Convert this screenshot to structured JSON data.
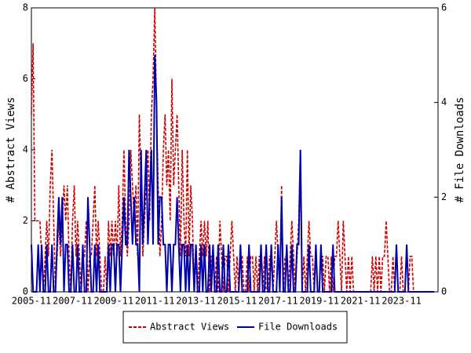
{
  "chart_data": {
    "type": "line",
    "y_label": "# Abstract Views",
    "y2_label": "# File Downloads",
    "categories": [
      "2005-11",
      null,
      null,
      null,
      null,
      null,
      null,
      null,
      null,
      null,
      null,
      null,
      null,
      null,
      null,
      null,
      null,
      null,
      null,
      null,
      null,
      null,
      null,
      null,
      "2007-11",
      null,
      null,
      null,
      null,
      null,
      null,
      null,
      null,
      null,
      null,
      null,
      null,
      null,
      null,
      null,
      null,
      null,
      null,
      null,
      null,
      null,
      null,
      null,
      "2009-11",
      null,
      null,
      null,
      null,
      null,
      null,
      null,
      null,
      null,
      null,
      null,
      null,
      null,
      null,
      null,
      null,
      null,
      null,
      null,
      null,
      null,
      null,
      null,
      "2011-11",
      null,
      null,
      null,
      null,
      null,
      null,
      null,
      null,
      null,
      null,
      null,
      null,
      null,
      null,
      null,
      null,
      null,
      null,
      null,
      null,
      null,
      null,
      null,
      "2013-11",
      null,
      null,
      null,
      null,
      null,
      null,
      null,
      null,
      null,
      null,
      null,
      null,
      null,
      null,
      null,
      null,
      null,
      null,
      null,
      null,
      null,
      null,
      null,
      "2015-11",
      null,
      null,
      null,
      null,
      null,
      null,
      null,
      null,
      null,
      null,
      null,
      null,
      null,
      null,
      null,
      null,
      null,
      null,
      null,
      null,
      null,
      null,
      null,
      "2017-11",
      null,
      null,
      null,
      null,
      null,
      null,
      null,
      null,
      null,
      null,
      null,
      null,
      null,
      null,
      null,
      null,
      null,
      null,
      null,
      null,
      null,
      null,
      null,
      "2019-11",
      null,
      null,
      null,
      null,
      null,
      null,
      null,
      null,
      null,
      null,
      null,
      null,
      null,
      null,
      null,
      null,
      null,
      null,
      null,
      null,
      null,
      null,
      null,
      "2021-11",
      null,
      null,
      null,
      null,
      null,
      null,
      null,
      null,
      null,
      null,
      null,
      null,
      null,
      null,
      null,
      null,
      null,
      null,
      null,
      null,
      null,
      null,
      null,
      "2023-11",
      null,
      null,
      null,
      null,
      null,
      null,
      null,
      null,
      null,
      null,
      null,
      null,
      null,
      null,
      null,
      null,
      null,
      null,
      null
    ],
    "series": [
      {
        "name": "Abstract Views",
        "color": "#cc0000",
        "dash": true,
        "values": [
          5,
          7,
          2,
          2,
          2,
          2,
          1,
          0,
          1,
          2,
          1,
          3,
          4,
          2,
          0,
          1,
          2,
          1,
          2,
          3,
          2,
          3,
          1,
          0,
          2,
          3,
          1,
          2,
          1,
          0,
          1,
          1,
          2,
          0,
          1,
          1,
          2,
          3,
          1,
          2,
          1,
          0,
          0,
          1,
          0,
          2,
          1,
          2,
          1,
          2,
          1,
          3,
          1,
          2,
          4,
          2,
          1,
          2,
          4,
          3,
          2,
          3,
          1,
          5,
          3,
          1,
          2,
          3,
          4,
          2,
          5,
          6,
          8,
          5,
          3,
          1,
          2,
          4,
          5,
          3,
          4,
          2,
          6,
          3,
          4,
          5,
          3,
          1,
          4,
          2,
          1,
          4,
          1,
          3,
          2,
          0,
          1,
          0,
          1,
          2,
          1,
          2,
          1,
          2,
          0,
          1,
          1,
          0,
          1,
          0,
          2,
          1,
          0,
          1,
          1,
          0,
          1,
          2,
          1,
          0,
          1,
          0,
          1,
          1,
          0,
          0,
          1,
          0,
          1,
          1,
          0,
          1,
          0,
          1,
          1,
          0,
          1,
          0,
          0,
          1,
          1,
          0,
          1,
          2,
          1,
          0,
          3,
          0,
          1,
          1,
          0,
          1,
          2,
          1,
          0,
          1,
          2,
          4,
          0,
          1,
          0,
          1,
          2,
          1,
          1,
          0,
          1,
          0,
          0,
          1,
          1,
          0,
          1,
          1,
          0,
          1,
          0,
          1,
          1,
          2,
          1,
          0,
          2,
          1,
          0,
          1,
          0,
          1,
          0,
          0,
          0,
          0,
          0,
          0,
          0,
          0,
          0,
          0,
          0,
          1,
          0,
          1,
          0,
          1,
          0,
          1,
          1,
          2,
          1,
          0,
          0,
          1,
          0,
          0,
          0,
          0,
          1,
          0,
          0,
          0,
          0,
          1,
          1,
          0,
          0,
          0,
          0,
          0,
          0,
          0,
          0,
          0,
          0,
          0,
          0,
          0
        ]
      },
      {
        "name": "File Downloads",
        "color": "#0000aa",
        "dash": false,
        "axis": "y2",
        "values": [
          1,
          0,
          0,
          0,
          1,
          0,
          1,
          0,
          0,
          1,
          0,
          0,
          1,
          0,
          0,
          1,
          2,
          1,
          2,
          0,
          1,
          1,
          0,
          0,
          1,
          0,
          0,
          1,
          0,
          0,
          1,
          0,
          0,
          2,
          1,
          0,
          0,
          1,
          0,
          1,
          0,
          0,
          0,
          0,
          0,
          1,
          0,
          1,
          1,
          0,
          1,
          1,
          0,
          1,
          2,
          1,
          1,
          3,
          2,
          1,
          2,
          1,
          1,
          0,
          3,
          1,
          2,
          3,
          1,
          2,
          3,
          1,
          5,
          4,
          1,
          2,
          2,
          1,
          1,
          0,
          1,
          1,
          0,
          1,
          1,
          2,
          1,
          0,
          1,
          1,
          0,
          1,
          0,
          1,
          1,
          0,
          1,
          0,
          0,
          1,
          0,
          1,
          0,
          0,
          1,
          0,
          1,
          0,
          0,
          1,
          0,
          0,
          1,
          0,
          0,
          1,
          0,
          0,
          0,
          0,
          0,
          0,
          1,
          0,
          0,
          0,
          0,
          1,
          0,
          0,
          0,
          0,
          0,
          0,
          1,
          0,
          0,
          1,
          0,
          0,
          1,
          0,
          0,
          0,
          1,
          0,
          2,
          0,
          0,
          1,
          0,
          0,
          1,
          0,
          0,
          1,
          1,
          3,
          0,
          0,
          0,
          0,
          1,
          0,
          0,
          0,
          1,
          0,
          0,
          1,
          0,
          0,
          0,
          0,
          0,
          0,
          1,
          0,
          0,
          0,
          0,
          0,
          0,
          0,
          0,
          0,
          0,
          0,
          0,
          0,
          0,
          0,
          0,
          0,
          0,
          0,
          0,
          0,
          0,
          0,
          0,
          0,
          0,
          0,
          0,
          0,
          0,
          0,
          0,
          0,
          0,
          0,
          0,
          1,
          0,
          0,
          0,
          0,
          0,
          1,
          0,
          0,
          0,
          0,
          0,
          0,
          0,
          0,
          0,
          0,
          0,
          0,
          0,
          0,
          0,
          0
        ]
      }
    ],
    "ylim": [
      0,
      8
    ],
    "yticks": [
      0,
      2,
      4,
      6,
      8
    ],
    "y2lim": [
      0,
      6
    ],
    "y2ticks": [
      0,
      2,
      4,
      6
    ],
    "legend": "bottom"
  }
}
